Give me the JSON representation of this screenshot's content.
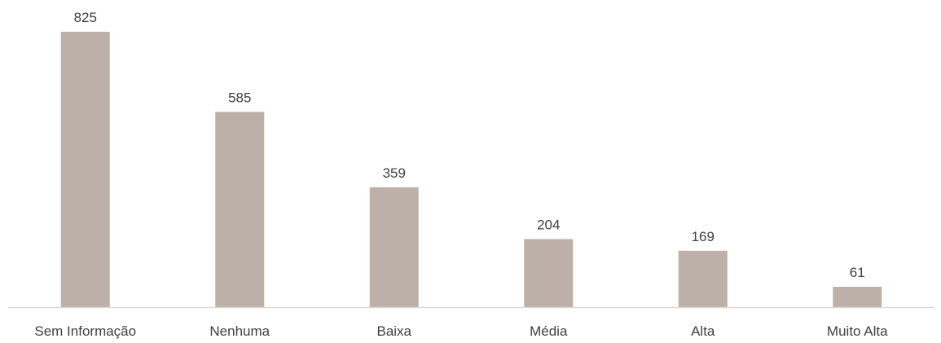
{
  "chart_data": {
    "type": "bar",
    "categories": [
      "Sem Informação",
      "Nenhuma",
      "Baixa",
      "Média",
      "Alta",
      "Muito Alta"
    ],
    "values": [
      825,
      585,
      359,
      204,
      169,
      61
    ],
    "title": "",
    "xlabel": "",
    "ylabel": "",
    "ylim": [
      0,
      825
    ],
    "grid": false,
    "legend": "none",
    "data_labels": true,
    "colors": {
      "bar": "#bdb0a8",
      "axis": "#d9d9d9",
      "text": "#404040"
    }
  }
}
